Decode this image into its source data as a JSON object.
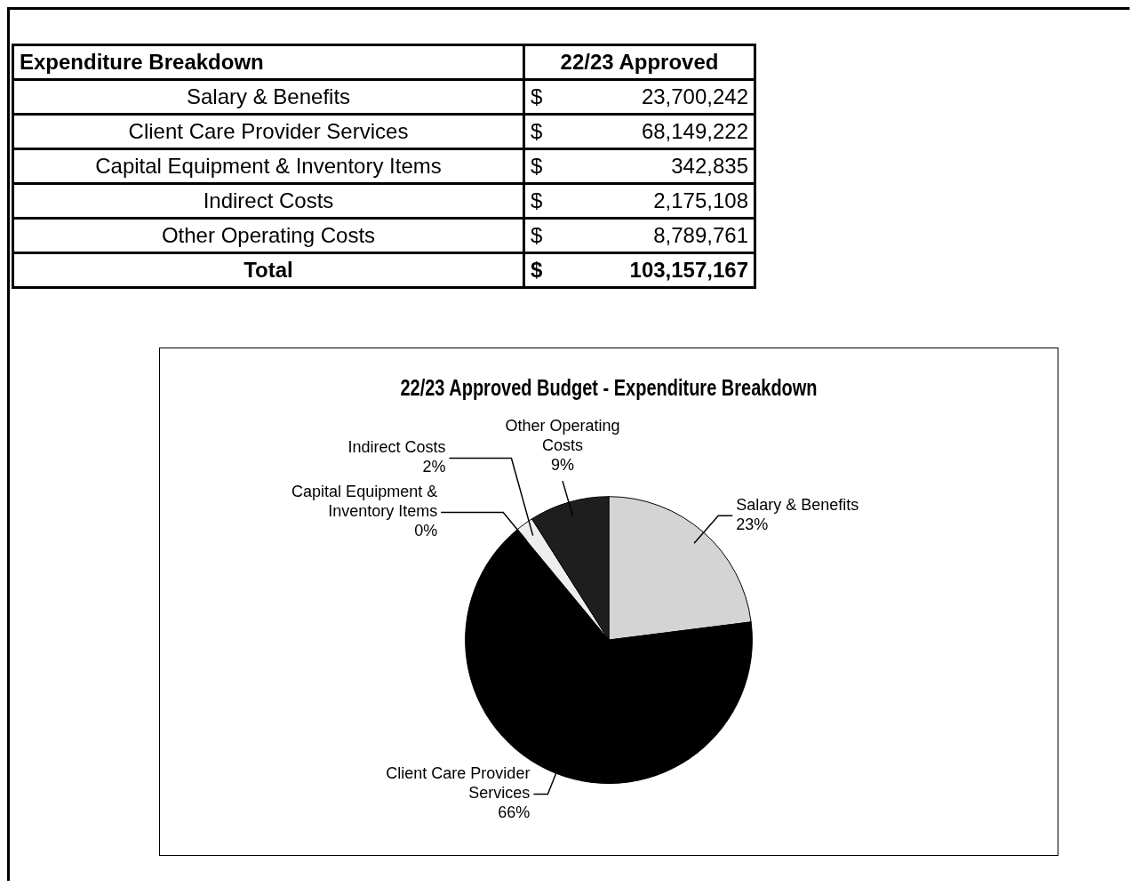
{
  "chart_data": [
    {
      "type": "other",
      "title": "Expenditure Breakdown",
      "subtitle": "22/23 Approved",
      "categories": [
        "Salary & Benefits",
        "Client Care Provider Services",
        "Capital Equipment & Inventory Items",
        "Indirect Costs",
        "Other Operating Costs"
      ],
      "values": [
        23700242,
        68149222,
        342835,
        2175108,
        8789761
      ],
      "value_labels": [
        "23,700,242",
        "68,149,222",
        "342,835",
        "2,175,108",
        "8,789,761"
      ],
      "totals": [
        "103,157,167"
      ],
      "annotations": [
        "$",
        "Total"
      ]
    },
    {
      "type": "pie",
      "title": "22/23 Approved Budget - Expenditure Breakdown",
      "categories": [
        "Salary & Benefits",
        "Client Care Provider Services",
        "Capital Equipment & Inventory Items",
        "Indirect Costs",
        "Other Operating Costs"
      ],
      "values": [
        23,
        66,
        0,
        2,
        9
      ],
      "colors": [
        "#d4d4d4",
        "#000000",
        "#ffffff",
        "#eeeeee",
        "#1e1e1e"
      ],
      "value_labels": [
        "23%",
        "66%",
        "0%",
        "2%",
        "9%"
      ],
      "legend": false
    }
  ]
}
